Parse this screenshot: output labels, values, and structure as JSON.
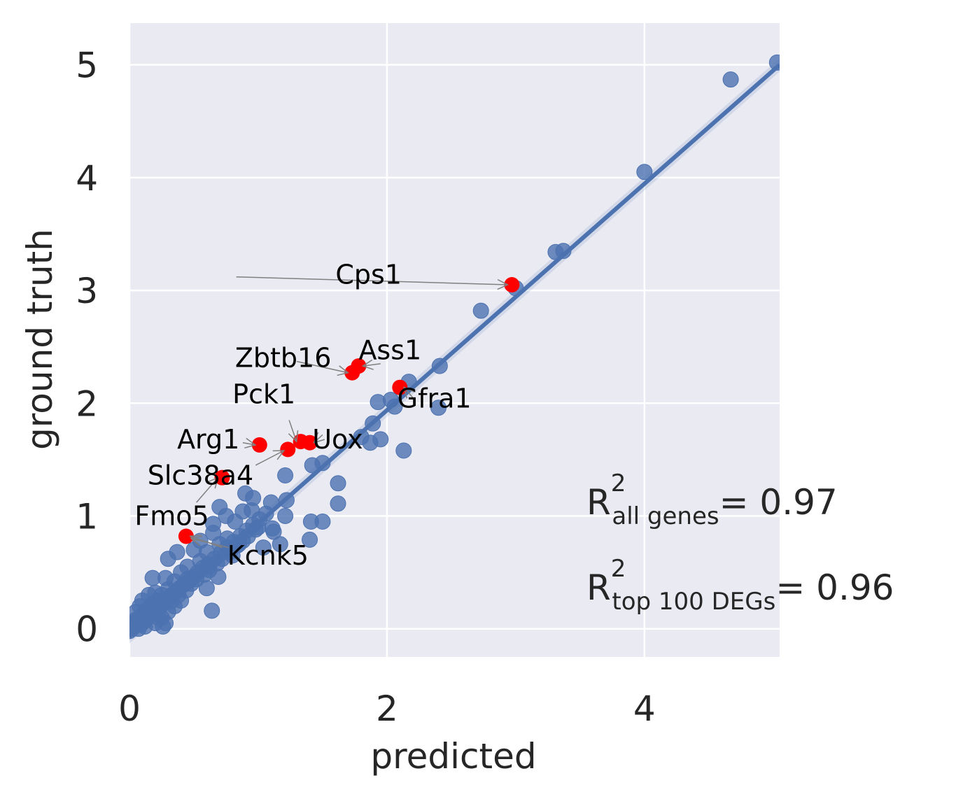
{
  "chart_data": {
    "type": "scatter",
    "xlabel": "predicted",
    "ylabel": "ground truth",
    "xlim": [
      0,
      5.05
    ],
    "ylim": [
      -0.25,
      5.37
    ],
    "xticks": [
      0,
      2,
      4
    ],
    "yticks": [
      0,
      1,
      2,
      3,
      4,
      5
    ],
    "grid": true,
    "colors": {
      "background": "#eaeaf2",
      "grid": "#ffffff",
      "points": "#4c72b0",
      "highlight": "#ff0000",
      "fit_line": "#4c72b0",
      "arrow": "#808080"
    },
    "regression_line": {
      "x": [
        0,
        5.05
      ],
      "y": [
        -0.07,
        5.0
      ]
    },
    "points": [
      [
        5.03,
        5.02
      ],
      [
        4.67,
        4.87
      ],
      [
        4.0,
        4.05
      ],
      [
        3.37,
        3.35
      ],
      [
        3.31,
        3.34
      ],
      [
        3.0,
        3.02
      ],
      [
        2.73,
        2.82
      ],
      [
        2.41,
        2.33
      ],
      [
        2.17,
        2.19
      ],
      [
        1.93,
        2.01
      ],
      [
        2.06,
        1.97
      ],
      [
        2.4,
        1.96
      ],
      [
        2.03,
        2.03
      ],
      [
        1.89,
        1.82
      ],
      [
        1.8,
        1.7
      ],
      [
        1.87,
        1.65
      ],
      [
        1.95,
        1.68
      ],
      [
        2.13,
        1.58
      ],
      [
        1.5,
        1.47
      ],
      [
        1.42,
        1.45
      ],
      [
        1.62,
        1.29
      ],
      [
        1.62,
        1.11
      ],
      [
        1.21,
        1.36
      ],
      [
        1.41,
        0.95
      ],
      [
        1.5,
        0.95
      ],
      [
        1.4,
        0.79
      ],
      [
        1.12,
        0.86
      ],
      [
        1.11,
        0.89
      ],
      [
        1.04,
        0.72
      ],
      [
        1.17,
        0.75
      ],
      [
        1.21,
        1.0
      ],
      [
        1.1,
        1.12
      ],
      [
        1.22,
        1.14
      ],
      [
        0.96,
        1.16
      ],
      [
        0.9,
        1.2
      ],
      [
        0.88,
        1.04
      ],
      [
        0.7,
        1.08
      ],
      [
        0.65,
        0.93
      ],
      [
        0.62,
        0.55
      ],
      [
        0.69,
        0.46
      ],
      [
        0.6,
        0.36
      ],
      [
        0.64,
        0.16
      ],
      [
        0.37,
        0.68
      ],
      [
        0.18,
        0.45
      ],
      [
        0.45,
        0.44
      ],
      [
        0.3,
        0.62
      ],
      [
        0.76,
        0.8
      ],
      [
        0.82,
        0.95
      ],
      [
        0.55,
        0.78
      ],
      [
        0.5,
        0.7
      ],
      [
        1.0,
        0.9
      ],
      [
        0.85,
        0.75
      ],
      [
        0.75,
        1.0
      ],
      [
        0.95,
        1.05
      ],
      [
        0.8,
        0.65
      ],
      [
        0.7,
        0.75
      ],
      [
        0.6,
        0.68
      ],
      [
        0.55,
        0.6
      ],
      [
        0.65,
        0.85
      ],
      [
        0.45,
        0.55
      ],
      [
        0.4,
        0.5
      ],
      [
        0.35,
        0.42
      ],
      [
        0.3,
        0.35
      ],
      [
        0.28,
        0.45
      ],
      [
        0.25,
        0.3
      ],
      [
        0.22,
        0.25
      ],
      [
        0.2,
        0.32
      ],
      [
        0.18,
        0.22
      ],
      [
        0.15,
        0.18
      ],
      [
        0.12,
        0.15
      ],
      [
        0.1,
        0.12
      ],
      [
        0.08,
        0.1
      ],
      [
        0.06,
        0.06
      ],
      [
        0.05,
        0.08
      ],
      [
        0.04,
        0.03
      ],
      [
        0.03,
        0.05
      ],
      [
        0.02,
        0.0
      ],
      [
        0.01,
        0.02
      ],
      [
        0.0,
        0.01
      ],
      [
        0.0,
        -0.02
      ],
      [
        0.07,
        0.0
      ],
      [
        0.09,
        0.04
      ],
      [
        0.12,
        0.07
      ],
      [
        0.14,
        0.1
      ],
      [
        0.16,
        0.13
      ],
      [
        0.19,
        0.16
      ],
      [
        0.21,
        0.19
      ],
      [
        0.24,
        0.2
      ],
      [
        0.27,
        0.24
      ],
      [
        0.3,
        0.27
      ],
      [
        0.33,
        0.3
      ],
      [
        0.36,
        0.33
      ],
      [
        0.39,
        0.36
      ],
      [
        0.42,
        0.39
      ],
      [
        0.46,
        0.42
      ],
      [
        0.5,
        0.46
      ],
      [
        0.53,
        0.5
      ],
      [
        0.57,
        0.54
      ],
      [
        0.61,
        0.57
      ],
      [
        0.66,
        0.62
      ],
      [
        0.71,
        0.67
      ],
      [
        0.76,
        0.72
      ],
      [
        0.81,
        0.77
      ],
      [
        0.86,
        0.82
      ],
      [
        0.91,
        0.87
      ],
      [
        0.96,
        0.92
      ],
      [
        1.01,
        0.97
      ],
      [
        1.06,
        1.02
      ],
      [
        0.2,
        0.05
      ],
      [
        0.25,
        0.1
      ],
      [
        0.3,
        0.15
      ],
      [
        0.35,
        0.2
      ],
      [
        0.4,
        0.25
      ],
      [
        0.1,
        0.25
      ],
      [
        0.15,
        0.3
      ],
      [
        0.08,
        0.2
      ],
      [
        0.05,
        0.15
      ],
      [
        0.12,
        0.02
      ],
      [
        0.22,
        0.1
      ],
      [
        0.28,
        0.05
      ],
      [
        0.26,
        0.02
      ],
      [
        0.32,
        0.24
      ],
      [
        0.38,
        0.3
      ],
      [
        0.44,
        0.34
      ],
      [
        0.48,
        0.4
      ],
      [
        0.52,
        0.44
      ],
      [
        0.58,
        0.48
      ],
      [
        0.62,
        0.52
      ],
      [
        0.68,
        0.58
      ],
      [
        0.72,
        0.62
      ],
      [
        0.78,
        0.68
      ],
      [
        0.84,
        0.74
      ],
      [
        0.88,
        0.78
      ],
      [
        0.92,
        0.82
      ],
      [
        0.98,
        0.88
      ]
    ],
    "highlighted": [
      {
        "name": "Cps1",
        "x": 2.97,
        "y": 3.05
      },
      {
        "name": "Ass1",
        "x": 1.78,
        "y": 2.33
      },
      {
        "name": "Zbtb16",
        "x": 1.73,
        "y": 2.27
      },
      {
        "name": "Gfra1",
        "x": 2.1,
        "y": 2.14
      },
      {
        "name": "Uox",
        "x": 1.4,
        "y": 1.65
      },
      {
        "name": "Pck1",
        "x": 1.33,
        "y": 1.66
      },
      {
        "name": "Arg1",
        "x": 1.01,
        "y": 1.63
      },
      {
        "name": "",
        "x": 1.23,
        "y": 1.59
      },
      {
        "name": "Slc38a4",
        "x": 0.72,
        "y": 1.34
      },
      {
        "name": "Fmo5",
        "x": 0.44,
        "y": 0.82
      }
    ],
    "annotations": [
      {
        "text": "Cps1",
        "x": 1.6,
        "y": 3.06
      },
      {
        "text": "Ass1",
        "x": 1.78,
        "y": 2.39
      },
      {
        "text": "Zbtb16",
        "x": 0.82,
        "y": 2.32
      },
      {
        "text": "Gfra1",
        "x": 2.08,
        "y": 1.96
      },
      {
        "text": "Uox",
        "x": 1.42,
        "y": 1.6
      },
      {
        "text": "Pck1",
        "x": 0.8,
        "y": 2.0
      },
      {
        "text": "Arg1",
        "x": 0.37,
        "y": 1.6
      },
      {
        "text": "Slc38a4",
        "x": 0.14,
        "y": 1.28
      },
      {
        "text": "Fmo5",
        "x": 0.04,
        "y": 0.92
      },
      {
        "text": "Kcnk5",
        "x": 0.76,
        "y": 0.57
      }
    ],
    "r2": [
      {
        "main": "R",
        "sup": "2",
        "sub": "all genes",
        "value": "= 0.97"
      },
      {
        "main": "R",
        "sup": "2",
        "sub": "top 100 DEGs",
        "value": "= 0.96"
      }
    ]
  }
}
